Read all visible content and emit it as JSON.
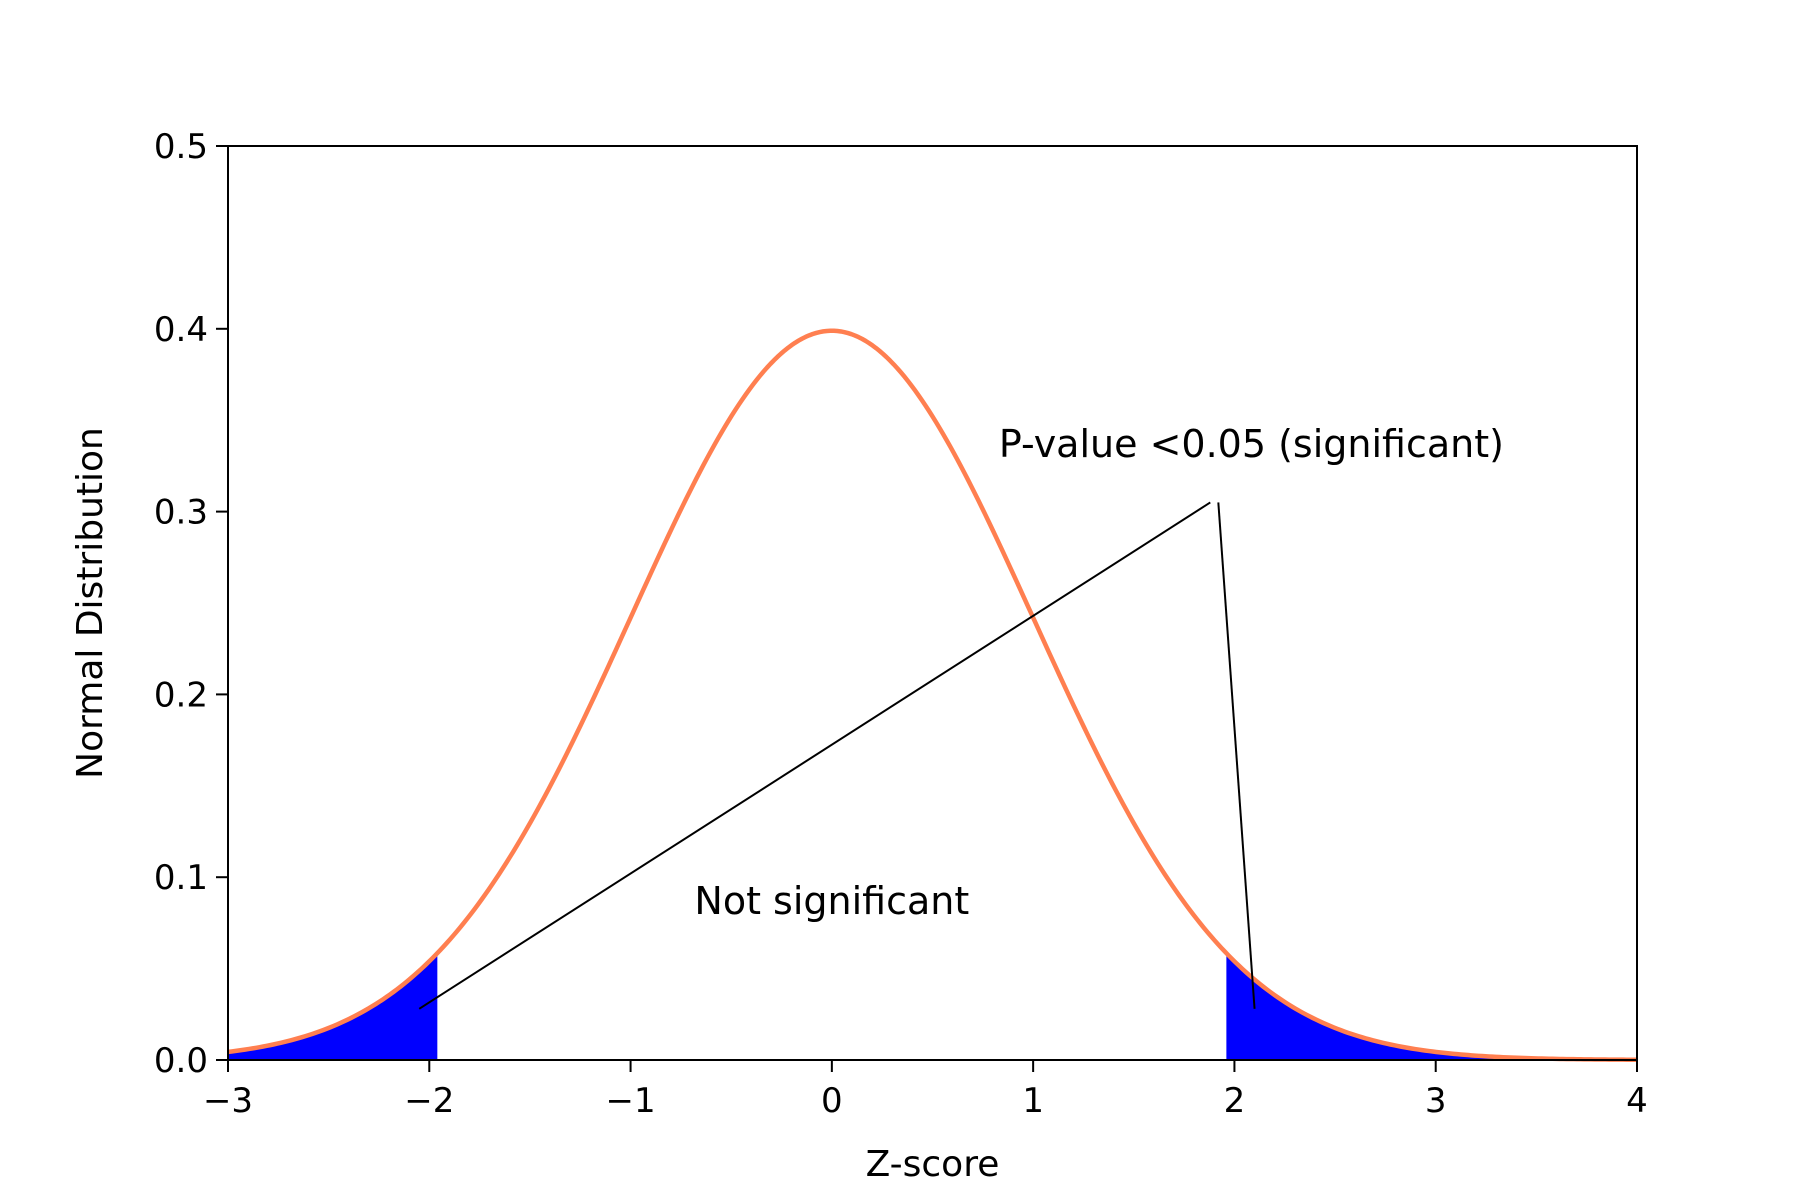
{
  "chart_data": {
    "type": "line",
    "title": "",
    "xlabel": "Z-score",
    "ylabel": "Normal Distribution",
    "xlim": [
      -3,
      4
    ],
    "ylim": [
      0,
      0.5
    ],
    "x_ticks": [
      -3,
      -2,
      -1,
      0,
      1,
      2,
      3,
      4
    ],
    "x_tick_labels": [
      "−3",
      "−2",
      "−1",
      "0",
      "1",
      "2",
      "3",
      "4"
    ],
    "y_ticks": [
      0,
      0.1,
      0.2,
      0.3,
      0.4,
      0.5
    ],
    "y_tick_labels": [
      "0.0",
      "0.1",
      "0.2",
      "0.3",
      "0.4",
      "0.5"
    ],
    "grid": false,
    "curve": {
      "distribution": "standard normal pdf",
      "mean": 0,
      "sd": 1,
      "x_range": [
        -3,
        4
      ],
      "color": "#ff7f50"
    },
    "shaded_regions": [
      {
        "x_range": [
          -3,
          -1.96
        ],
        "color": "#0000ff"
      },
      {
        "x_range": [
          1.96,
          4
        ],
        "color": "#0000ff"
      }
    ],
    "annotations": [
      {
        "text": "P-value <0.05 (significant)",
        "position": [
          0.83,
          0.33
        ],
        "arrows_to": [
          [
            -2.05,
            0.028
          ],
          [
            2.1,
            0.028
          ]
        ]
      },
      {
        "text": "Not significant",
        "position": [
          0,
          0.08
        ]
      }
    ]
  }
}
